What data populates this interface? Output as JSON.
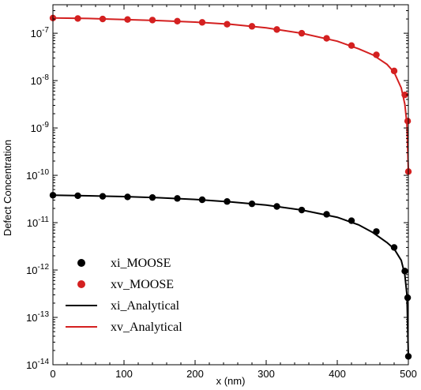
{
  "chart_data": {
    "type": "line",
    "xlabel": "x (nm)",
    "ylabel": "Defect Concentration",
    "xlim": [
      0,
      500
    ],
    "ylim": [
      1e-14,
      4e-07
    ],
    "yscale": "log",
    "x_ticks": [
      "0",
      "100",
      "200",
      "300",
      "400",
      "500"
    ],
    "y_ticks": [
      {
        "base": "10",
        "exp": "-7",
        "value": 1e-07
      },
      {
        "base": "10",
        "exp": "-8",
        "value": 1e-08
      },
      {
        "base": "10",
        "exp": "-9",
        "value": 1e-09
      },
      {
        "base": "10",
        "exp": "-10",
        "value": 1e-10
      },
      {
        "base": "10",
        "exp": "-11",
        "value": 1e-11
      },
      {
        "base": "10",
        "exp": "-12",
        "value": 1e-12
      },
      {
        "base": "10",
        "exp": "-13",
        "value": 1e-13
      },
      {
        "base": "10",
        "exp": "-14",
        "value": 1e-14
      }
    ],
    "legend_position": "bottom-left",
    "grid": false,
    "series": [
      {
        "name": "xi_MOOSE",
        "kind": "markers",
        "color": "#000000",
        "x": [
          0,
          35,
          70,
          105,
          140,
          175,
          210,
          245,
          280,
          315,
          350,
          385,
          420,
          455,
          480,
          495,
          499,
          500
        ],
        "y": [
          3.8e-11,
          3.7e-11,
          3.6e-11,
          3.5e-11,
          3.4e-11,
          3.25e-11,
          3.05e-11,
          2.8e-11,
          2.5e-11,
          2.2e-11,
          1.85e-11,
          1.5e-11,
          1.1e-11,
          6.5e-12,
          3e-12,
          9.5e-13,
          2.6e-13,
          1.5e-14
        ]
      },
      {
        "name": "xv_MOOSE",
        "kind": "markers",
        "color": "#d42020",
        "x": [
          0,
          35,
          70,
          105,
          140,
          175,
          210,
          245,
          280,
          315,
          350,
          385,
          420,
          455,
          480,
          495,
          499,
          500
        ],
        "y": [
          2.1e-07,
          2.05e-07,
          2e-07,
          1.95e-07,
          1.9e-07,
          1.8e-07,
          1.7e-07,
          1.55e-07,
          1.4e-07,
          1.2e-07,
          1e-07,
          7.8e-08,
          5.5e-08,
          3.5e-08,
          1.6e-08,
          5e-09,
          1.4e-09,
          1.2e-10
        ]
      },
      {
        "name": "xi_Analytical",
        "kind": "line",
        "color": "#000000",
        "x": [
          0,
          50,
          100,
          150,
          200,
          250,
          300,
          350,
          400,
          430,
          450,
          470,
          480,
          490,
          495,
          498,
          500
        ],
        "y": [
          3.8e-11,
          3.7e-11,
          3.55e-11,
          3.35e-11,
          3.1e-11,
          2.75e-11,
          2.35e-11,
          1.85e-11,
          1.3e-11,
          9e-12,
          6.2e-12,
          3.8e-12,
          2.8e-12,
          1.6e-12,
          8e-13,
          3e-13,
          1.5e-14
        ]
      },
      {
        "name": "xv_Analytical",
        "kind": "line",
        "color": "#d42020",
        "x": [
          0,
          50,
          100,
          150,
          200,
          250,
          300,
          350,
          400,
          430,
          450,
          470,
          480,
          490,
          495,
          498,
          500
        ],
        "y": [
          2.1e-07,
          2.05e-07,
          1.95e-07,
          1.85e-07,
          1.72e-07,
          1.55e-07,
          1.3e-07,
          1e-07,
          6.8e-08,
          4.7e-08,
          3.5e-08,
          2.2e-08,
          1.5e-08,
          7e-09,
          3.2e-09,
          1.2e-09,
          1.2e-10
        ]
      }
    ]
  }
}
